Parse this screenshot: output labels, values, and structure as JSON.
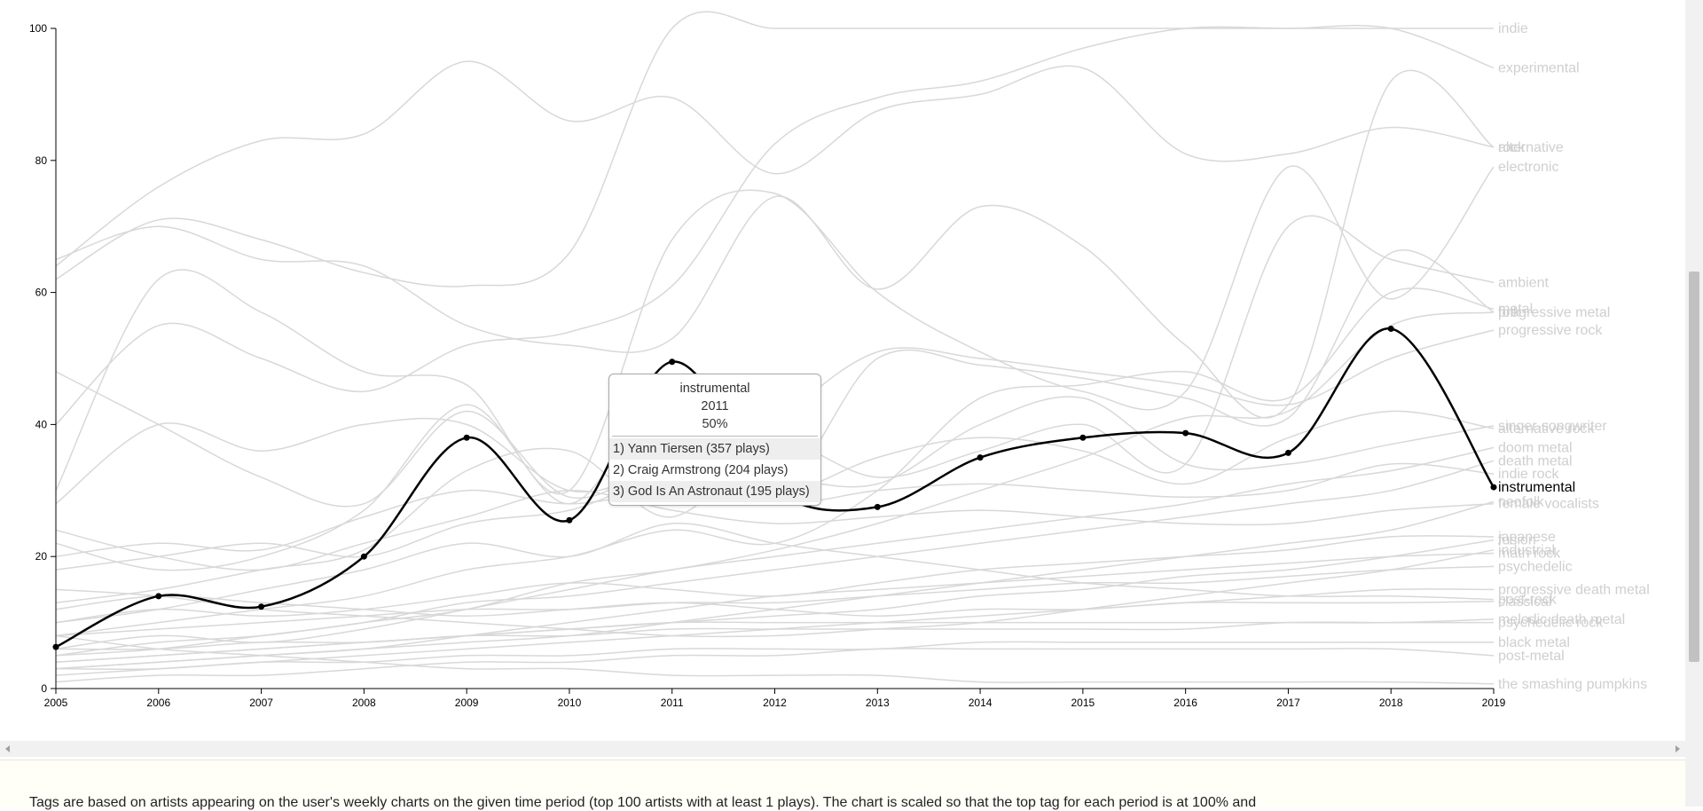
{
  "chart_data": {
    "type": "line",
    "x": [
      "2005",
      "2006",
      "2007",
      "2008",
      "2009",
      "2010",
      "2011",
      "2012",
      "2013",
      "2014",
      "2015",
      "2016",
      "2017",
      "2018",
      "2019"
    ],
    "ylim": [
      0,
      100
    ],
    "yticks": [
      "0",
      "20",
      "40",
      "60",
      "80",
      "100"
    ],
    "series": [
      {
        "name": "instrumental",
        "values": [
          6.3,
          14,
          12.4,
          20,
          38,
          25.5,
          49.5,
          30,
          27.5,
          35,
          38,
          38.7,
          35.7,
          54.5,
          30.5
        ]
      },
      {
        "name": "rock",
        "values": [
          64,
          76,
          83,
          84,
          95,
          86,
          89.5,
          78,
          87.5,
          90,
          94,
          81,
          81,
          85,
          82
        ]
      },
      {
        "name": "indie",
        "values": [
          62,
          71,
          68,
          63,
          61,
          66,
          100,
          100,
          100,
          100,
          100,
          100,
          100,
          100,
          100
        ]
      },
      {
        "name": "alternative",
        "values": [
          65,
          70,
          65,
          64,
          55,
          52,
          53,
          74.5,
          60.5,
          73,
          67,
          52,
          43,
          92,
          82
        ]
      },
      {
        "name": "experimental",
        "values": [
          40,
          55,
          50,
          45,
          52,
          54,
          61,
          82.5,
          89.5,
          92,
          97,
          100,
          100,
          100,
          94
        ]
      },
      {
        "name": "electronic",
        "values": [
          30,
          62,
          57,
          48,
          46,
          30,
          68,
          75,
          60,
          51,
          45,
          45,
          79,
          59,
          79
        ]
      },
      {
        "name": "ambient",
        "values": [
          48,
          40,
          32,
          28,
          42,
          29,
          35,
          38,
          32,
          36,
          40,
          34,
          70,
          65,
          61.5
        ]
      },
      {
        "name": "folk",
        "values": [
          22,
          18,
          20,
          27,
          43,
          28,
          45,
          30,
          50,
          49,
          47,
          44,
          41,
          66,
          57
        ]
      },
      {
        "name": "metal",
        "values": [
          8,
          10,
          12,
          14,
          18,
          20,
          24,
          22,
          30,
          44,
          46,
          48,
          44,
          60,
          57.5
        ]
      },
      {
        "name": "progressive metal",
        "values": [
          5,
          7,
          8,
          10,
          12,
          16,
          18,
          21,
          25,
          30,
          35,
          41,
          42,
          55,
          57
        ]
      },
      {
        "name": "progressive rock",
        "values": [
          13,
          15,
          18,
          21,
          33,
          36,
          26,
          40,
          51,
          50,
          48,
          46,
          43,
          50,
          54.3
        ]
      },
      {
        "name": "singer-songwriter",
        "values": [
          28,
          40,
          36,
          40,
          40,
          30,
          33,
          32,
          31,
          40,
          44,
          34,
          34,
          37,
          39.8
        ]
      },
      {
        "name": "alternative rock",
        "values": [
          20,
          22,
          21,
          26,
          30,
          28,
          30,
          29,
          35,
          38,
          36,
          31,
          38,
          42,
          39.4
        ]
      },
      {
        "name": "doom metal",
        "values": [
          6,
          8,
          7,
          9,
          12,
          15,
          18,
          20,
          22,
          24,
          26,
          28,
          31,
          33,
          36.5
        ]
      },
      {
        "name": "death metal",
        "values": [
          5,
          6,
          8,
          10,
          13,
          14,
          16,
          18,
          20,
          22,
          24,
          26,
          28,
          30,
          34.5
        ]
      },
      {
        "name": "indie rock",
        "values": [
          18,
          20,
          22,
          20,
          25,
          27,
          32,
          28,
          30,
          31,
          30,
          29,
          30,
          34,
          32.5
        ]
      },
      {
        "name": "female vocalists",
        "values": [
          24,
          20,
          18,
          22,
          26,
          30,
          27,
          25,
          26,
          27,
          26,
          25,
          25,
          27,
          28
        ]
      },
      {
        "name": "neofolk",
        "values": [
          3,
          4,
          5,
          6,
          7,
          8,
          10,
          12,
          14,
          16,
          18,
          20,
          22,
          24,
          28.3
        ]
      },
      {
        "name": "japanese",
        "values": [
          10,
          12,
          11,
          12,
          14,
          16,
          15,
          14,
          16,
          18,
          19,
          20,
          21,
          23,
          23
        ]
      },
      {
        "name": "fusion",
        "values": [
          4,
          5,
          6,
          7,
          8,
          9,
          10,
          11,
          12,
          14,
          15,
          17,
          18,
          20,
          22.5
        ]
      },
      {
        "name": "industrial",
        "values": [
          15,
          14,
          12,
          11,
          10,
          9,
          8,
          8,
          9,
          10,
          12,
          14,
          16,
          18,
          21
        ]
      },
      {
        "name": "math rock",
        "values": [
          3,
          4,
          5,
          6,
          8,
          10,
          12,
          14,
          15,
          16,
          17,
          18,
          19,
          20,
          20.5
        ]
      },
      {
        "name": "psychedelic",
        "values": [
          8,
          9,
          10,
          11,
          12,
          12,
          13,
          13,
          14,
          15,
          16,
          16,
          17,
          18,
          18.5
        ]
      },
      {
        "name": "progressive death metal",
        "values": [
          2,
          3,
          4,
          5,
          6,
          7,
          8,
          9,
          10,
          11,
          12,
          13,
          14,
          15,
          15
        ]
      },
      {
        "name": "post-rock",
        "values": [
          10,
          12,
          15,
          18,
          22,
          20,
          25,
          22,
          20,
          18,
          16,
          15,
          14,
          14,
          13.5
        ]
      },
      {
        "name": "classical",
        "values": [
          12,
          14,
          13,
          12,
          11,
          12,
          13,
          12,
          11,
          12,
          12,
          13,
          13,
          13,
          13.2
        ]
      },
      {
        "name": "melodic death metal",
        "values": [
          4,
          5,
          6,
          7,
          8,
          9,
          10,
          10,
          10,
          10,
          10,
          10,
          10,
          10,
          10.5
        ]
      },
      {
        "name": "psychedelic rock",
        "values": [
          6,
          6,
          7,
          7,
          8,
          8,
          9,
          9,
          9,
          9,
          9,
          9,
          10,
          10,
          10
        ]
      },
      {
        "name": "black metal",
        "values": [
          3,
          3,
          4,
          4,
          5,
          5,
          6,
          6,
          6,
          7,
          7,
          7,
          7,
          7,
          7
        ]
      },
      {
        "name": "post-metal",
        "values": [
          1,
          2,
          2,
          3,
          4,
          4,
          5,
          5,
          6,
          6,
          6,
          6,
          6,
          6,
          5
        ]
      },
      {
        "name": "the smashing pumpkins",
        "values": [
          8,
          6,
          5,
          4,
          3,
          3,
          2,
          2,
          2,
          1,
          1,
          1,
          1,
          1,
          0.7
        ]
      }
    ],
    "tooltip": {
      "tag": "instrumental",
      "year": "2011",
      "percent": "50%",
      "top_artists": [
        "1) Yann Tiersen (357 plays)",
        "2) Craig Armstrong (204 plays)",
        "3) God Is An Astronaut (195 plays)"
      ]
    },
    "grid": false,
    "legend": "end-of-line labels"
  },
  "footer": {
    "note": "Tags are based on artists appearing on the user's weekly charts on the given time period (top 100 artists with at least 1 plays). The chart is scaled so that the top tag for each period is at 100% and"
  },
  "colors": {
    "highlight": "#000000",
    "background_lines": "#d8d8d8",
    "labels_inactive": "#cfcfcf"
  }
}
